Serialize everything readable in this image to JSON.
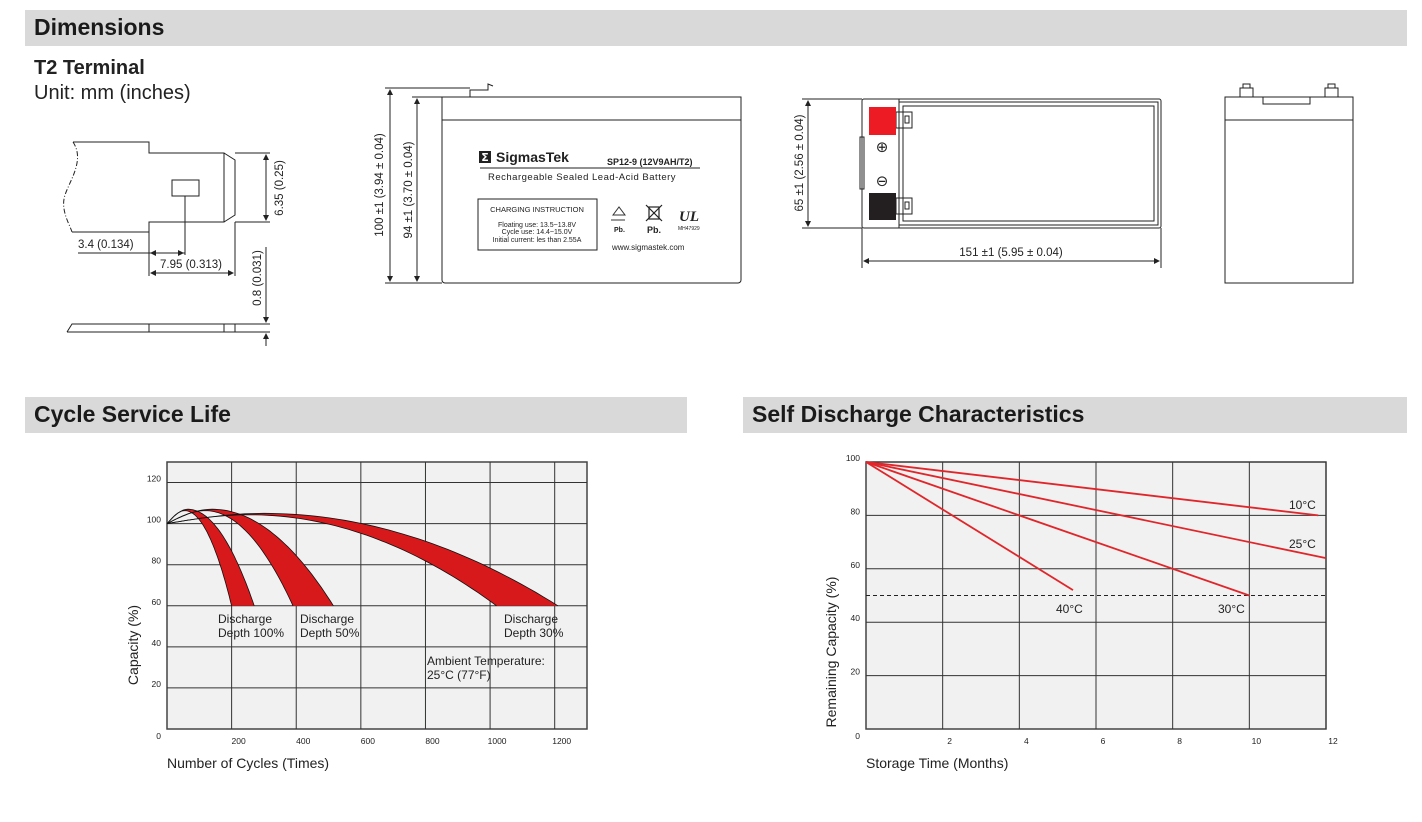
{
  "sections": {
    "dimensions": "Dimensions",
    "cycle": "Cycle Service Life",
    "self_discharge": "Self Discharge Characteristics"
  },
  "terminal": {
    "title": "T2 Terminal",
    "unit": "Unit: mm (inches)",
    "dim_height": "6.35 (0.25)",
    "dim_hole_offset": "3.4 (0.134)",
    "dim_width": "7.95 (0.313)",
    "dim_thickness": "0.8 (0.031)"
  },
  "battery": {
    "dim_total_height": "100 ±1 (3.94 ± 0.04)",
    "dim_case_height": "94 ±1 (3.70 ± 0.04)",
    "dim_width": "65 ±1 (2.56 ± 0.04)",
    "dim_length": "151 ±1 (5.95 ± 0.04)",
    "label": {
      "brand": "SigmasTek",
      "brand_symbol": "Σ",
      "model": "SP12-9 (12V9AH/T2)",
      "description": "Rechargeable Sealed Lead-Acid Battery",
      "charging_title": "CHARGING INSTRUCTION",
      "floating": "Floating use: 13.5~13.8V",
      "cycle": "Cycle use: 14.4~15.0V",
      "initial": "Initial current: les than 2.55A",
      "pb1": "Pb.",
      "pb2": "Pb.",
      "ul_code": "MH47929",
      "url": "www.sigmastek.com"
    },
    "positive_symbol": "⊕",
    "negative_symbol": "⊖",
    "colors": {
      "positive": "#ed1c24",
      "negative": "#231f20"
    }
  },
  "chart_data": [
    {
      "type": "area",
      "xlabel": "Number of Cycles (Times)",
      "ylabel": "Capacity (%)",
      "xlim": [
        0,
        1300
      ],
      "ylim": [
        0,
        130
      ],
      "xticks": [
        200,
        400,
        600,
        800,
        1000,
        1200
      ],
      "yticks": [
        0,
        20,
        40,
        60,
        80,
        100,
        120
      ],
      "grid": true,
      "color": "#d7191c",
      "series": [
        {
          "name_lines": [
            "Discharge",
            "Depth 100%"
          ],
          "start": 100,
          "peak": [
            65,
            107
          ],
          "end_cycles_at_60pct": [
            200,
            270
          ]
        },
        {
          "name_lines": [
            "Discharge",
            "Depth 50%"
          ],
          "start": 100,
          "peak": [
            140,
            107
          ],
          "end_cycles_at_60pct": [
            390,
            515
          ]
        },
        {
          "name_lines": [
            "Discharge",
            "Depth 30%"
          ],
          "start": 100,
          "peak": [
            300,
            105
          ],
          "end_cycles_at_60pct": [
            1020,
            1210
          ]
        }
      ],
      "annotation": [
        "Ambient Temperature:",
        "25°C (77°F)"
      ]
    },
    {
      "type": "line",
      "xlabel": "Storage Time (Months)",
      "ylabel": "Remaining Capacity (%)",
      "xlim": [
        0,
        12
      ],
      "ylim": [
        0,
        100
      ],
      "xticks": [
        2,
        4,
        6,
        8,
        10,
        12
      ],
      "yticks": [
        0,
        20,
        40,
        60,
        80,
        100
      ],
      "grid": true,
      "color": "#e0262b",
      "reference_line": 50,
      "series": [
        {
          "name": "10°C",
          "x": [
            0,
            11.8
          ],
          "y": [
            100,
            80
          ]
        },
        {
          "name": "25°C",
          "x": [
            0,
            12
          ],
          "y": [
            100,
            64
          ]
        },
        {
          "name": "30°C",
          "x": [
            0,
            10
          ],
          "y": [
            100,
            50
          ]
        },
        {
          "name": "40°C",
          "x": [
            0,
            5.4
          ],
          "y": [
            100,
            52
          ]
        }
      ]
    }
  ]
}
